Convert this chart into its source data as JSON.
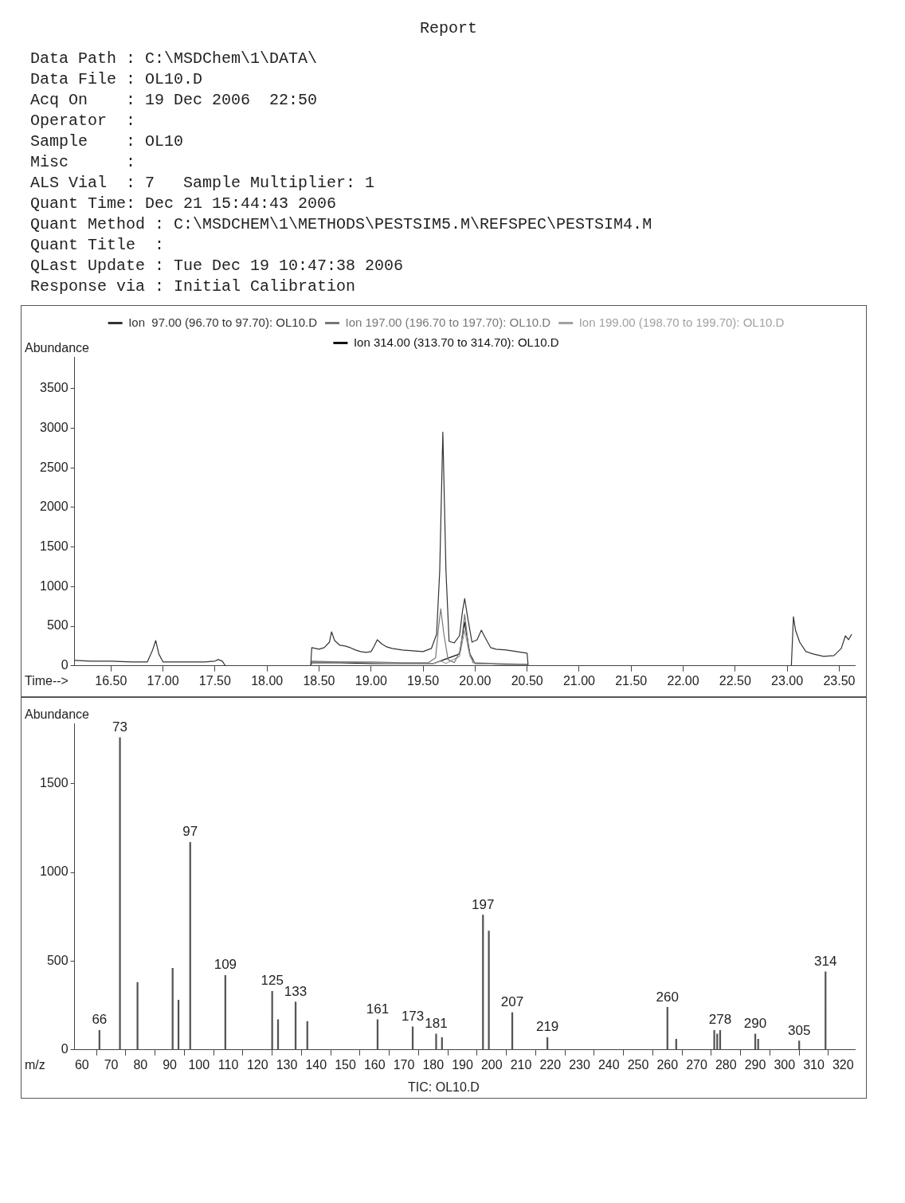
{
  "chart_data": [
    {
      "type": "other",
      "title": "Report",
      "annotations": [
        "Data Path : C:\\MSDChem\\1\\DATA\\",
        "Data File : OL10.D",
        "Acq On    : 19 Dec 2006  22:50",
        "Operator  :",
        "Sample    : OL10",
        "Misc      :",
        "ALS Vial  : 7   Sample Multiplier: 1",
        "Quant Time: Dec 21 15:44:43 2006",
        "Quant Method : C:\\MSDCHEM\\1\\METHODS\\PESTSIM5.M\\REFSPEC\\PESTSIM4.M",
        "Quant Title  :",
        "QLast Update : Tue Dec 19 10:47:38 2006",
        "Response via : Initial Calibration"
      ]
    },
    {
      "type": "line",
      "xlabel": "Time-->",
      "ylabel": "Abundance",
      "legend": "top",
      "marker": "none",
      "xlim": [
        16.15,
        23.65
      ],
      "ylim": [
        0,
        3900
      ],
      "xticks": [
        {
          "value": 16.5,
          "label": "16.50"
        },
        {
          "value": 17,
          "label": "17.00"
        },
        {
          "value": 17.5,
          "label": "17.50"
        },
        {
          "value": 18,
          "label": "18.00"
        },
        {
          "value": 18.5,
          "label": "18.50"
        },
        {
          "value": 19,
          "label": "19.00"
        },
        {
          "value": 19.5,
          "label": "19.50"
        },
        {
          "value": 20,
          "label": "20.00"
        },
        {
          "value": 20.5,
          "label": "20.50"
        },
        {
          "value": 21,
          "label": "21.00"
        },
        {
          "value": 21.5,
          "label": "21.50"
        },
        {
          "value": 22,
          "label": "22.00"
        },
        {
          "value": 22.5,
          "label": "22.50"
        },
        {
          "value": 23,
          "label": "23.00"
        },
        {
          "value": 23.5,
          "label": "23.50"
        }
      ],
      "yticks": [
        0,
        500,
        1000,
        1500,
        2000,
        2500,
        3000,
        3500
      ],
      "series": [
        {
          "name": "Ion  97.00 (96.70 to 97.70): OL10.D",
          "color": "#333333",
          "x": [
            16.15,
            16.3,
            16.5,
            16.7,
            16.85,
            16.9,
            16.93,
            16.96,
            17.0,
            17.2,
            17.4,
            17.5,
            17.53,
            17.57,
            17.6,
            18.0,
            18.42,
            18.43,
            18.5,
            18.55,
            18.6,
            18.62,
            18.65,
            18.7,
            18.75,
            18.8,
            18.85,
            18.9,
            18.95,
            19.0,
            19.03,
            19.06,
            19.1,
            19.15,
            19.2,
            19.3,
            19.4,
            19.5,
            19.58,
            19.63,
            19.66,
            19.69,
            19.72,
            19.75,
            19.8,
            19.85,
            19.88,
            19.9,
            19.93,
            19.97,
            20.02,
            20.06,
            20.1,
            20.15,
            20.2,
            20.3,
            20.4,
            20.5,
            20.51,
            21.0,
            23.04,
            23.06,
            23.08,
            23.12,
            23.18,
            23.25,
            23.35,
            23.45,
            23.52,
            23.56,
            23.59,
            23.62
          ],
          "values": [
            70,
            60,
            60,
            50,
            50,
            200,
            320,
            150,
            50,
            50,
            50,
            60,
            80,
            60,
            0,
            null,
            0,
            230,
            210,
            230,
            300,
            430,
            320,
            260,
            250,
            230,
            200,
            180,
            170,
            180,
            250,
            330,
            280,
            240,
            220,
            200,
            190,
            180,
            220,
            400,
            1200,
            2950,
            1200,
            310,
            290,
            380,
            700,
            850,
            600,
            300,
            330,
            450,
            350,
            230,
            210,
            200,
            180,
            160,
            0,
            null,
            0,
            620,
            450,
            300,
            180,
            150,
            120,
            130,
            220,
            380,
            330,
            400
          ]
        },
        {
          "name": "Ion 197.00 (196.70 to 197.70): OL10.D",
          "color": "#777777",
          "x": [
            18.42,
            18.43,
            18.7,
            19.0,
            19.3,
            19.55,
            19.62,
            19.65,
            19.67,
            19.7,
            19.74,
            19.8,
            19.86,
            19.9,
            19.94,
            19.98,
            20.2,
            20.5,
            20.51
          ],
          "values": [
            0,
            60,
            50,
            50,
            40,
            40,
            100,
            500,
            720,
            400,
            80,
            40,
            200,
            650,
            200,
            40,
            30,
            20,
            0
          ]
        },
        {
          "name": "Ion 199.00 (198.70 to 199.70): OL10.D",
          "color": "#a0a0a0",
          "x": [
            18.42,
            18.43,
            18.7,
            19.0,
            19.3,
            19.6,
            19.67,
            19.72,
            19.85,
            19.9,
            19.95,
            20.0,
            20.3,
            20.5,
            20.51
          ],
          "values": [
            0,
            50,
            50,
            40,
            30,
            30,
            60,
            30,
            120,
            450,
            120,
            30,
            20,
            20,
            0
          ]
        },
        {
          "name": "Ion 314.00 (313.70 to 314.70): OL10.D",
          "color": "#111111",
          "x": [
            18.42,
            18.43,
            18.7,
            19.0,
            19.3,
            19.6,
            19.85,
            19.9,
            19.95,
            20.0,
            20.3,
            20.5,
            20.51
          ],
          "values": [
            0,
            40,
            40,
            30,
            30,
            30,
            150,
            550,
            150,
            30,
            20,
            20,
            0
          ]
        }
      ]
    },
    {
      "type": "bar",
      "xlabel": "m/z",
      "ylabel": "Abundance",
      "color": "#555555",
      "annotations": [
        "TIC: OL10.D",
        {
          "text": "66",
          "x": 66,
          "y": 110
        },
        {
          "text": "73",
          "x": 73,
          "y": 1760
        },
        {
          "text": "97",
          "x": 97,
          "y": 1170
        },
        {
          "text": "109",
          "x": 109,
          "y": 420
        },
        {
          "text": "125",
          "x": 125,
          "y": 330
        },
        {
          "text": "133",
          "x": 133,
          "y": 270
        },
        {
          "text": "161",
          "x": 161,
          "y": 170
        },
        {
          "text": "173",
          "x": 173,
          "y": 130
        },
        {
          "text": "181",
          "x": 181,
          "y": 90
        },
        {
          "text": "197",
          "x": 197,
          "y": 760
        },
        {
          "text": "207",
          "x": 207,
          "y": 210
        },
        {
          "text": "219",
          "x": 219,
          "y": 70
        },
        {
          "text": "260",
          "x": 260,
          "y": 240
        },
        {
          "text": "278",
          "x": 278,
          "y": 110
        },
        {
          "text": "290",
          "x": 290,
          "y": 90
        },
        {
          "text": "305",
          "x": 305,
          "y": 50
        },
        {
          "text": "314",
          "x": 314,
          "y": 440
        }
      ],
      "xlim": [
        57.5,
        324
      ],
      "ylim": [
        0,
        1840
      ],
      "xticks": [
        60,
        70,
        80,
        90,
        100,
        110,
        120,
        130,
        140,
        150,
        160,
        170,
        180,
        190,
        200,
        210,
        220,
        230,
        240,
        250,
        260,
        270,
        280,
        290,
        300,
        310,
        320
      ],
      "yticks": [
        0,
        500,
        1000,
        1500
      ],
      "x": [
        66,
        73,
        79,
        91,
        93,
        97,
        109,
        125,
        127,
        133,
        137,
        161,
        173,
        181,
        183,
        197,
        199,
        207,
        219,
        260,
        263,
        276,
        277,
        278,
        290,
        291,
        305,
        314
      ],
      "values": [
        110,
        1760,
        380,
        460,
        280,
        1170,
        420,
        330,
        170,
        270,
        160,
        170,
        130,
        90,
        70,
        760,
        670,
        210,
        70,
        240,
        60,
        110,
        90,
        110,
        90,
        60,
        50,
        440
      ]
    }
  ]
}
